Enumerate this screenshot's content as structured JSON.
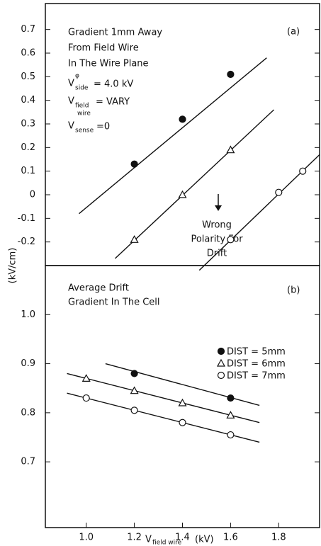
{
  "chart_data": [
    {
      "type": "line",
      "panel_label": "(a)",
      "annotation": {
        "lines": [
          "Gradient 1mm Away",
          "From Field Wire",
          "In The Wire Plane"
        ],
        "v_side": {
          "symbol": "V",
          "sub": "side",
          "sup": "φ",
          "text": "= 4.0 kV"
        },
        "v_field": {
          "symbol": "V",
          "sub": "field",
          "sub2": "wire",
          "text": "= VARY"
        },
        "v_sense": {
          "symbol": "V",
          "sub": "sense",
          "text": "=0"
        }
      },
      "note": [
        "Wrong",
        "Polarity For",
        "Drift"
      ],
      "xlim": [
        0.83,
        1.97
      ],
      "ylim": [
        -0.3,
        0.81
      ],
      "yticks": [
        -0.2,
        -0.1,
        0,
        0.1,
        0.2,
        0.3,
        0.4,
        0.5,
        0.6,
        0.7
      ],
      "series": [
        {
          "marker": "filled",
          "color": "#111",
          "x": [
            1.2,
            1.4,
            1.6
          ],
          "values": [
            0.13,
            0.32,
            0.51
          ],
          "line_x": [
            0.97,
            1.75
          ],
          "line_y": [
            -0.08,
            0.58
          ]
        },
        {
          "marker": "triangle",
          "color": "#111",
          "x": [
            1.2,
            1.4,
            1.6
          ],
          "values": [
            -0.19,
            0.0,
            0.19
          ],
          "line_x": [
            1.12,
            1.78
          ],
          "line_y": [
            -0.27,
            0.36
          ]
        },
        {
          "marker": "open",
          "color": "#111",
          "x": [
            1.6,
            1.8,
            1.9
          ],
          "values": [
            -0.19,
            0.01,
            0.1
          ],
          "line_x": [
            1.47,
            1.97
          ],
          "line_y": [
            -0.32,
            0.17
          ]
        }
      ]
    },
    {
      "type": "line",
      "panel_label": "(b)",
      "annotation": {
        "lines": [
          "Average Drift",
          "Gradient In The Cell"
        ]
      },
      "ylabel": "(kV/cm)",
      "xlabel": {
        "symbol": "V",
        "sub": "field wire",
        "text": "(kV)"
      },
      "xlim": [
        0.83,
        1.97
      ],
      "ylim": [
        0.566,
        1.1
      ],
      "xticks": [
        {
          "value": 1,
          "label": "1.0"
        },
        1.2,
        1.4,
        1.6,
        1.8
      ],
      "yticks": [
        0.7,
        0.8,
        0.9,
        {
          "value": 1,
          "label": "1.0"
        }
      ],
      "series": [
        {
          "name": "DIST = 5mm",
          "marker": "filled",
          "color": "#111",
          "x": [
            1.2,
            1.6
          ],
          "values": [
            0.88,
            0.83
          ],
          "line_x": [
            1.08,
            1.72
          ],
          "line_y": [
            0.9,
            0.815
          ]
        },
        {
          "name": "DIST = 6mm",
          "marker": "triangle",
          "color": "#111",
          "x": [
            1.0,
            1.2,
            1.4,
            1.6
          ],
          "values": [
            0.87,
            0.845,
            0.82,
            0.795
          ],
          "line_x": [
            0.92,
            1.72
          ],
          "line_y": [
            0.88,
            0.78
          ]
        },
        {
          "name": "DIST = 7mm",
          "marker": "open",
          "color": "#111",
          "x": [
            1.0,
            1.2,
            1.4,
            1.6
          ],
          "values": [
            0.83,
            0.805,
            0.78,
            0.755
          ],
          "line_x": [
            0.92,
            1.72
          ],
          "line_y": [
            0.84,
            0.74
          ]
        }
      ]
    }
  ]
}
